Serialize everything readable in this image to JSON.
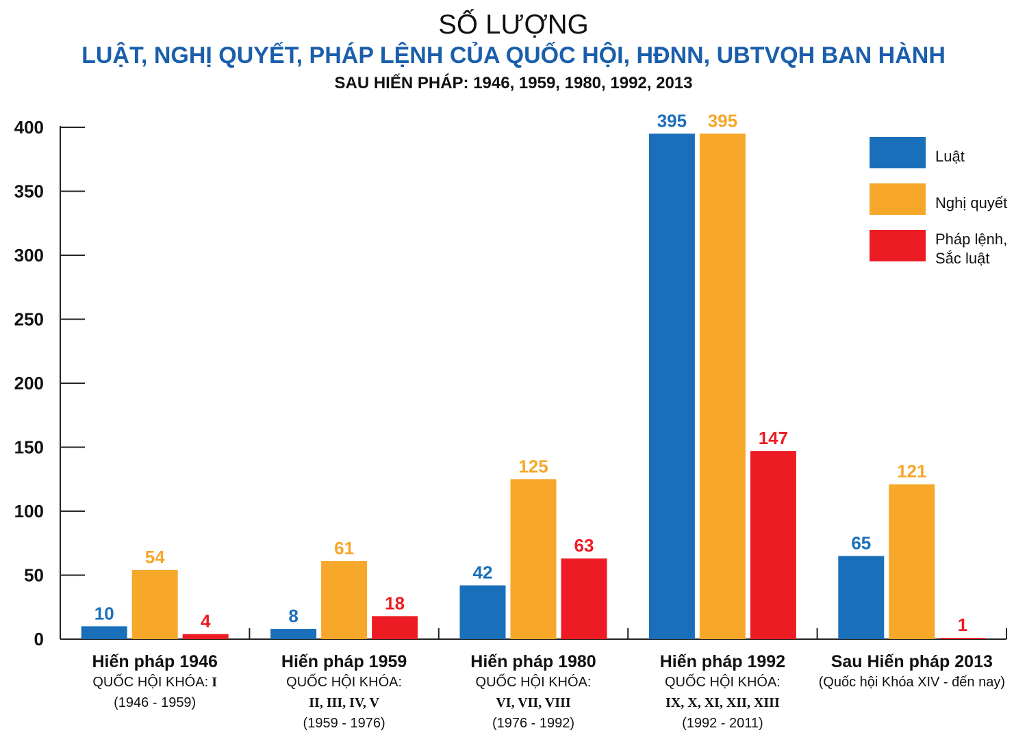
{
  "chart_data": {
    "type": "bar",
    "title": "SỐ LƯỢNG",
    "subtitle": "LUẬT, NGHỊ QUYẾT, PHÁP LỆNH CỦA QUỐC HỘI, HĐNN, UBTVQH BAN HÀNH",
    "subtitle2": "SAU HIẾN PHÁP: 1946, 1959, 1980, 1992, 2013",
    "ylim": [
      0,
      400
    ],
    "yticks": [
      0,
      50,
      100,
      150,
      200,
      250,
      300,
      350,
      400
    ],
    "grid": false,
    "legend_position": "top-right",
    "categories": [
      {
        "title": "Hiến pháp 1946",
        "line1_prefix": "QUỐC HỘI KHÓA:",
        "line1_roman": "I",
        "line2": "",
        "period": "(1946 - 1959)"
      },
      {
        "title": "Hiến pháp 1959",
        "line1_prefix": "QUỐC HỘI KHÓA:",
        "line1_roman": "",
        "line2": "II, III, IV, V",
        "period": "(1959 - 1976)"
      },
      {
        "title": "Hiến pháp 1980",
        "line1_prefix": "QUỐC HỘI KHÓA:",
        "line1_roman": "",
        "line2": "VI, VII, VIII",
        "period": "(1976 - 1992)"
      },
      {
        "title": "Hiến pháp 1992",
        "line1_prefix": "QUỐC HỘI KHÓA:",
        "line1_roman": "",
        "line2": "IX, X, XI, XII, XIII",
        "period": "(1992 - 2011)"
      },
      {
        "title": "Sau Hiến pháp 2013",
        "line1_prefix": "(Quốc hội Khóa XIV - đến nay)",
        "line1_roman": "",
        "line2": "",
        "period": ""
      }
    ],
    "series": [
      {
        "name": "Luật",
        "color": "#1a6fba",
        "values": [
          10,
          8,
          42,
          395,
          65
        ]
      },
      {
        "name": "Nghị quyết",
        "color": "#f7a72a",
        "values": [
          54,
          61,
          125,
          395,
          121
        ]
      },
      {
        "name": "Pháp lệnh,\nSắc luật",
        "color": "#ed1c24",
        "values": [
          4,
          18,
          63,
          147,
          1
        ]
      }
    ]
  }
}
